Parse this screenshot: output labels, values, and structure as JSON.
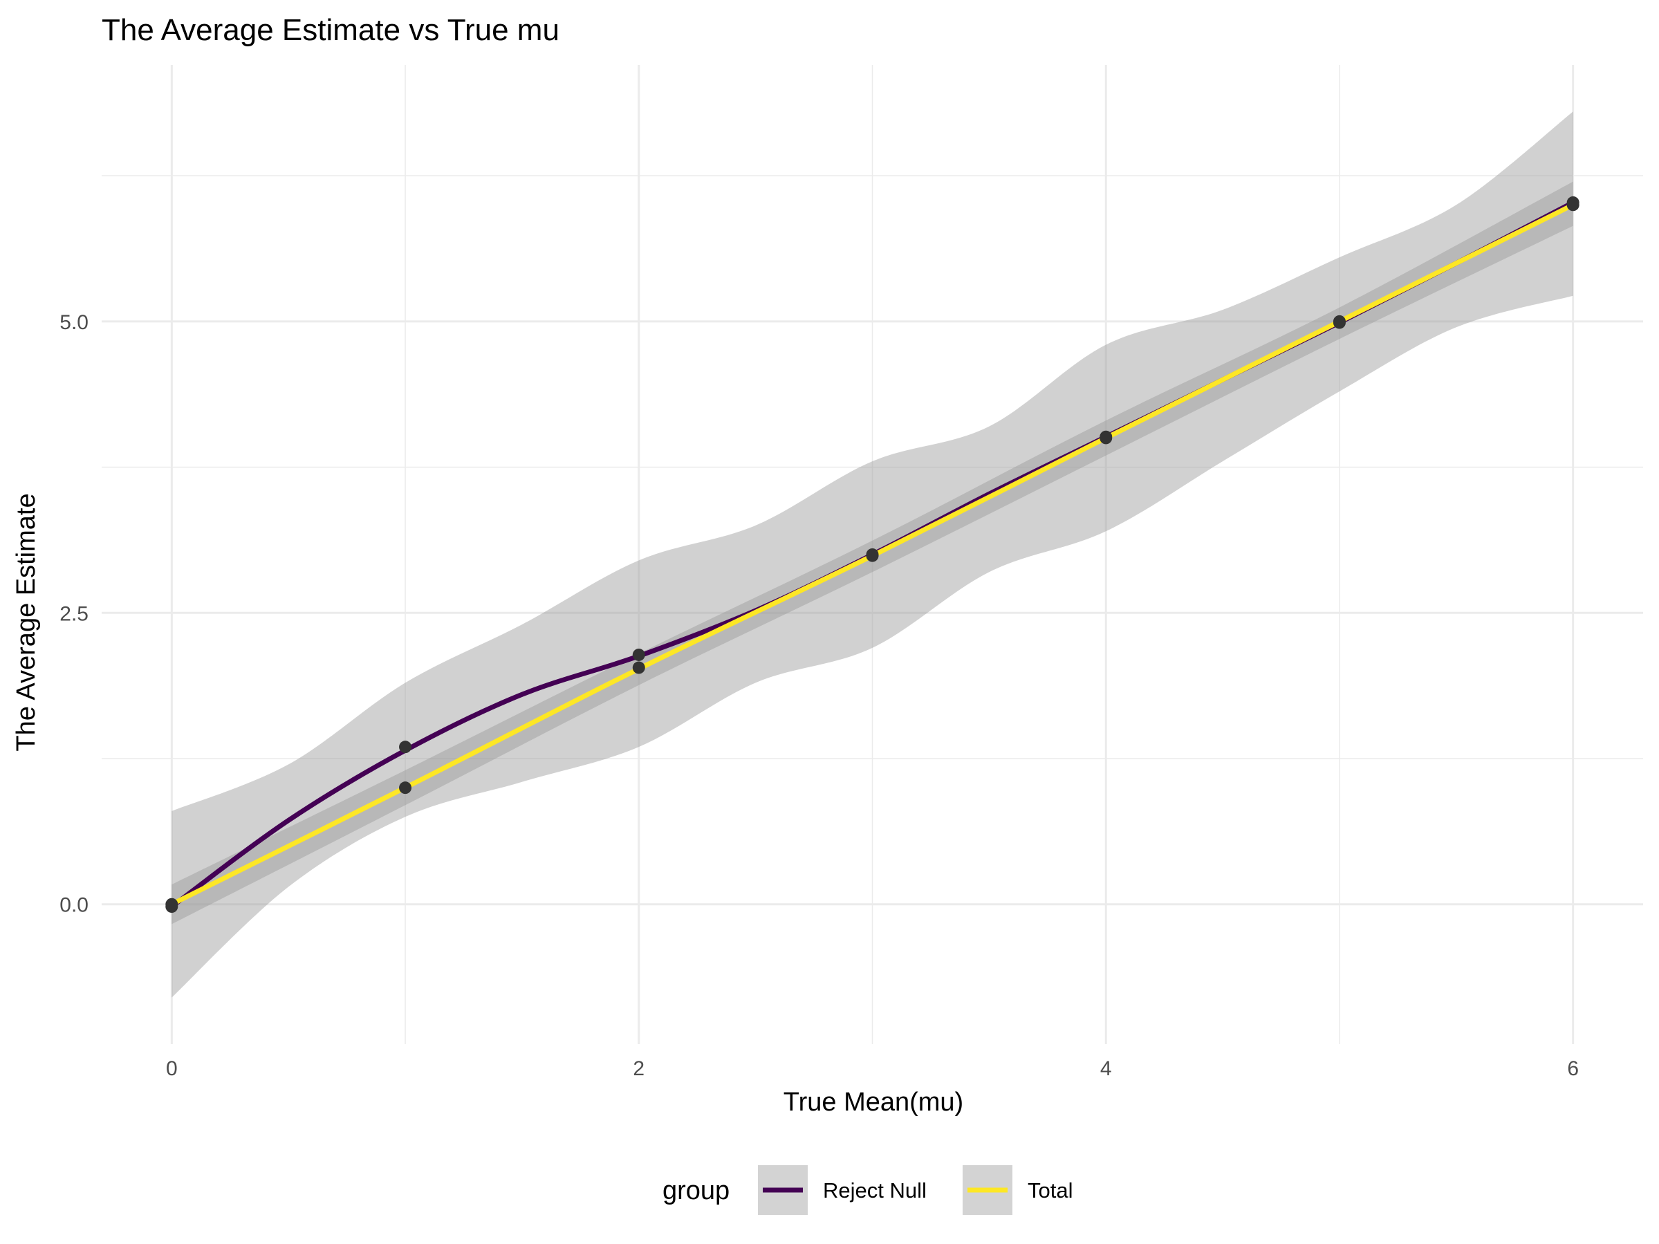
{
  "chart_data": {
    "type": "line",
    "title": "The Average Estimate vs True mu",
    "xlabel": "True Mean(mu)",
    "ylabel": "The Average Estimate",
    "xlim": [
      -0.3,
      6.3
    ],
    "ylim": [
      -1.2,
      7.2
    ],
    "x_ticks": [
      0,
      2,
      4,
      6
    ],
    "x_tick_labels": [
      "0",
      "2",
      "4",
      "6"
    ],
    "y_ticks": [
      0,
      2.5,
      5
    ],
    "y_tick_labels": [
      "0.0",
      "2.5",
      "5.0"
    ],
    "x_minor_grid": [
      1,
      3,
      5
    ],
    "y_minor_grid": [
      1.25,
      3.75,
      6.25
    ],
    "grid": true,
    "legend": {
      "position": "bottom",
      "title": "group",
      "entries": [
        {
          "label": "Reject Null",
          "color": "#440154"
        },
        {
          "label": "Total",
          "color": "#FDE725"
        }
      ]
    },
    "colors": {
      "band": "#999999",
      "point": "#333333",
      "grid": "#ebebeb"
    },
    "series": [
      {
        "name": "Reject Null",
        "color": "#440154",
        "points": [
          {
            "x": 0,
            "y": -0.02
          },
          {
            "x": 1,
            "y": 1.35
          },
          {
            "x": 2,
            "y": 2.14
          },
          {
            "x": 3,
            "y": 3.0
          },
          {
            "x": 4,
            "y": 4.01
          },
          {
            "x": 5,
            "y": 4.99
          },
          {
            "x": 6,
            "y": 6.02
          }
        ],
        "smooth": [
          {
            "x": 0,
            "y": -0.02
          },
          {
            "x": 0.5,
            "y": 0.72
          },
          {
            "x": 1,
            "y": 1.32
          },
          {
            "x": 1.5,
            "y": 1.8
          },
          {
            "x": 2,
            "y": 2.13
          },
          {
            "x": 2.5,
            "y": 2.52
          },
          {
            "x": 3,
            "y": 3.0
          },
          {
            "x": 3.5,
            "y": 3.52
          },
          {
            "x": 4,
            "y": 4.01
          },
          {
            "x": 4.5,
            "y": 4.5
          },
          {
            "x": 5,
            "y": 4.99
          },
          {
            "x": 5.5,
            "y": 5.5
          },
          {
            "x": 6,
            "y": 6.02
          }
        ],
        "ci_upper": [
          {
            "x": 0,
            "y": 0.8
          },
          {
            "x": 0.5,
            "y": 1.2
          },
          {
            "x": 1,
            "y": 1.9
          },
          {
            "x": 1.5,
            "y": 2.4
          },
          {
            "x": 2,
            "y": 2.95
          },
          {
            "x": 2.5,
            "y": 3.25
          },
          {
            "x": 3,
            "y": 3.8
          },
          {
            "x": 3.5,
            "y": 4.1
          },
          {
            "x": 4,
            "y": 4.8
          },
          {
            "x": 4.5,
            "y": 5.1
          },
          {
            "x": 5,
            "y": 5.55
          },
          {
            "x": 5.5,
            "y": 6.0
          },
          {
            "x": 6,
            "y": 6.8
          }
        ],
        "ci_lower": [
          {
            "x": 0,
            "y": -0.8
          },
          {
            "x": 0.5,
            "y": 0.15
          },
          {
            "x": 1,
            "y": 0.75
          },
          {
            "x": 1.5,
            "y": 1.05
          },
          {
            "x": 2,
            "y": 1.35
          },
          {
            "x": 2.5,
            "y": 1.9
          },
          {
            "x": 3,
            "y": 2.2
          },
          {
            "x": 3.5,
            "y": 2.85
          },
          {
            "x": 4,
            "y": 3.2
          },
          {
            "x": 4.5,
            "y": 3.8
          },
          {
            "x": 5,
            "y": 4.4
          },
          {
            "x": 5.5,
            "y": 4.95
          },
          {
            "x": 6,
            "y": 5.22
          }
        ]
      },
      {
        "name": "Total",
        "color": "#FDE725",
        "points": [
          {
            "x": 0,
            "y": 0.0
          },
          {
            "x": 1,
            "y": 1.0
          },
          {
            "x": 2,
            "y": 2.03
          },
          {
            "x": 3,
            "y": 2.99
          },
          {
            "x": 4,
            "y": 4.0
          },
          {
            "x": 5,
            "y": 5.0
          },
          {
            "x": 6,
            "y": 6.0
          }
        ],
        "smooth": [
          {
            "x": 0,
            "y": 0.0
          },
          {
            "x": 1,
            "y": 1.0
          },
          {
            "x": 2,
            "y": 2.02
          },
          {
            "x": 3,
            "y": 2.99
          },
          {
            "x": 4,
            "y": 4.0
          },
          {
            "x": 5,
            "y": 5.0
          },
          {
            "x": 6,
            "y": 6.0
          }
        ],
        "ci_upper": [
          {
            "x": 0,
            "y": 0.17
          },
          {
            "x": 1,
            "y": 1.15
          },
          {
            "x": 2,
            "y": 2.15
          },
          {
            "x": 3,
            "y": 3.12
          },
          {
            "x": 4,
            "y": 4.15
          },
          {
            "x": 5,
            "y": 5.12
          },
          {
            "x": 6,
            "y": 6.2
          }
        ],
        "ci_lower": [
          {
            "x": 0,
            "y": -0.17
          },
          {
            "x": 1,
            "y": 0.85
          },
          {
            "x": 2,
            "y": 1.88
          },
          {
            "x": 3,
            "y": 2.85
          },
          {
            "x": 4,
            "y": 3.85
          },
          {
            "x": 5,
            "y": 4.85
          },
          {
            "x": 6,
            "y": 5.82
          }
        ]
      }
    ]
  }
}
